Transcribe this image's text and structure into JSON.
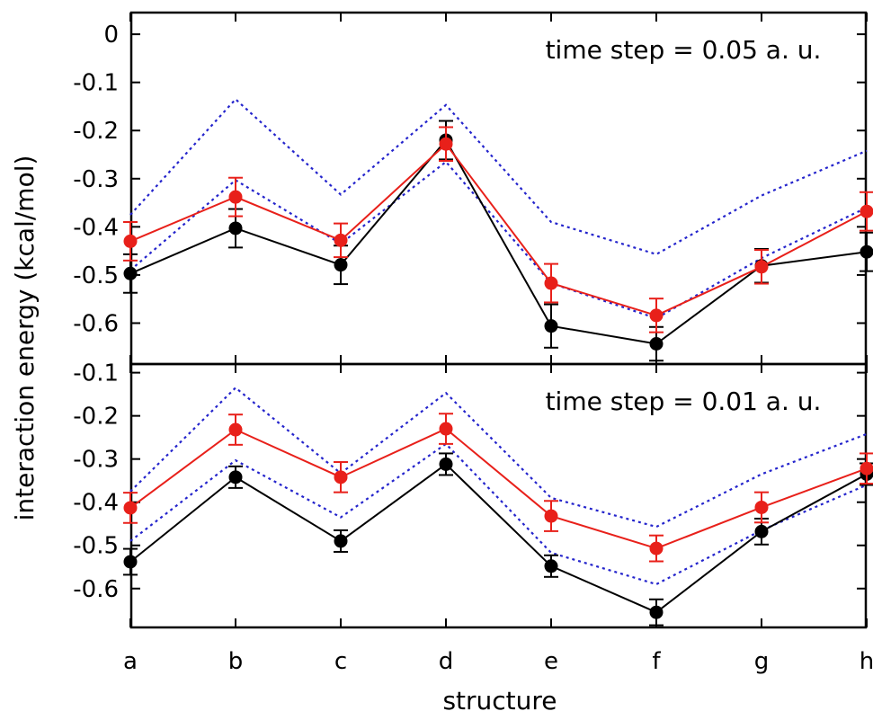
{
  "chart_data": {
    "type": "line",
    "xlabel": "structure",
    "ylabel": "interaction energy (kcal/mol)",
    "categories": [
      "a",
      "b",
      "c",
      "d",
      "e",
      "f",
      "g",
      "h"
    ],
    "colors": {
      "black_series": "#000000",
      "red_series": "#e8201a",
      "blue_bounds": "#2424cc"
    },
    "panels": [
      {
        "annotation": "time step = 0.05 a. u.",
        "ylim": [
          -0.685,
          0.045
        ],
        "yticks": [
          "0",
          "-0.1",
          "-0.2",
          "-0.3",
          "-0.4",
          "-0.5",
          "-0.6"
        ],
        "ytick_values": [
          0,
          -0.1,
          -0.2,
          -0.3,
          -0.4,
          -0.5,
          -0.6
        ],
        "series": [
          {
            "color": "black",
            "style": "line-errorbar",
            "values": [
              -0.497,
              -0.403,
              -0.479,
              -0.22,
              -0.606,
              -0.643,
              -0.481,
              -0.452
            ],
            "errors": [
              0.04,
              0.04,
              0.04,
              0.04,
              0.045,
              0.035,
              0.035,
              0.04
            ]
          },
          {
            "color": "red",
            "style": "line-errorbar",
            "values": [
              -0.43,
              -0.338,
              -0.428,
              -0.228,
              -0.517,
              -0.584,
              -0.483,
              -0.368
            ],
            "errors": [
              0.04,
              0.04,
              0.035,
              0.035,
              0.04,
              0.035,
              0.035,
              0.04
            ]
          },
          {
            "color": "blue",
            "style": "dotted",
            "values": [
              -0.375,
              -0.135,
              -0.333,
              -0.147,
              -0.39,
              -0.457,
              -0.335,
              -0.242
            ]
          },
          {
            "color": "blue",
            "style": "dotted",
            "values": [
              -0.49,
              -0.303,
              -0.435,
              -0.265,
              -0.517,
              -0.59,
              -0.465,
              -0.36
            ]
          }
        ]
      },
      {
        "annotation": "time step = 0.01 a. u.",
        "ylim": [
          -0.69,
          -0.08
        ],
        "yticks": [
          "-0.1",
          "-0.2",
          "-0.3",
          "-0.4",
          "-0.5",
          "-0.6"
        ],
        "ytick_values": [
          -0.1,
          -0.2,
          -0.3,
          -0.4,
          -0.5,
          -0.6
        ],
        "series": [
          {
            "color": "black",
            "style": "line-errorbar",
            "values": [
              -0.538,
              -0.342,
              -0.49,
              -0.312,
              -0.548,
              -0.655,
              -0.468,
              -0.335
            ],
            "errors": [
              0.03,
              0.025,
              0.025,
              0.025,
              0.025,
              0.03,
              0.03,
              0.025
            ]
          },
          {
            "color": "red",
            "style": "line-errorbar",
            "values": [
              -0.413,
              -0.232,
              -0.342,
              -0.23,
              -0.432,
              -0.507,
              -0.412,
              -0.322
            ],
            "errors": [
              0.035,
              0.035,
              0.035,
              0.035,
              0.035,
              0.03,
              0.035,
              0.035
            ]
          },
          {
            "color": "blue",
            "style": "dotted",
            "values": [
              -0.375,
              -0.135,
              -0.333,
              -0.147,
              -0.39,
              -0.457,
              -0.335,
              -0.242
            ]
          },
          {
            "color": "blue",
            "style": "dotted",
            "values": [
              -0.49,
              -0.303,
              -0.435,
              -0.265,
              -0.517,
              -0.59,
              -0.465,
              -0.36
            ]
          }
        ]
      }
    ]
  }
}
